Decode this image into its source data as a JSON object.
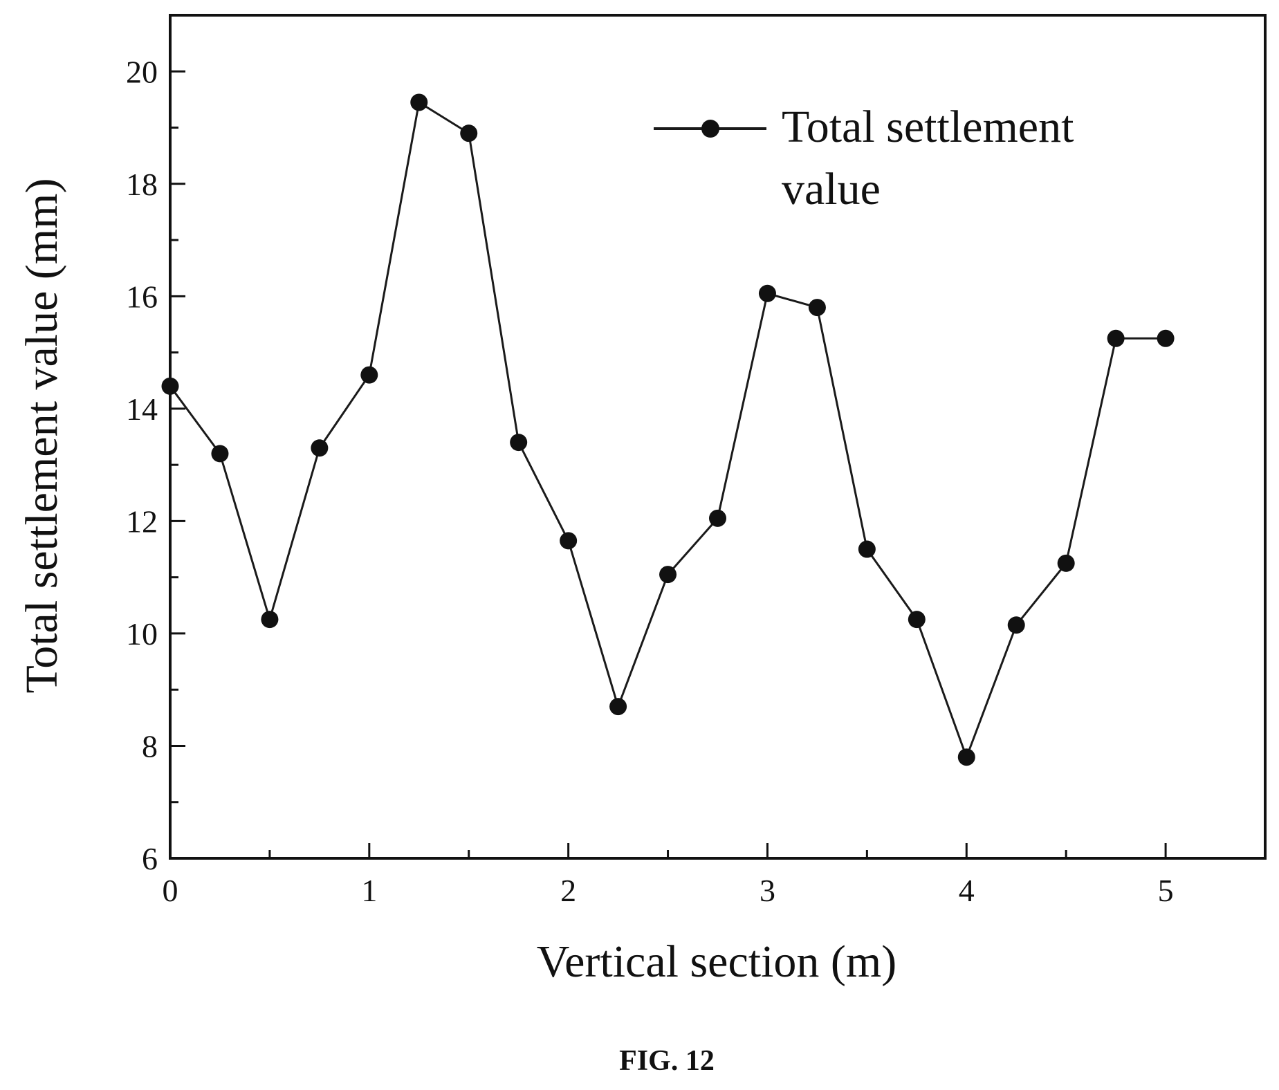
{
  "figure_caption": "FIG. 12",
  "colors": {
    "line": "#1a1a1a",
    "marker": "#111111",
    "axis": "#111111",
    "background": "#ffffff"
  },
  "chart_data": {
    "type": "line",
    "title": "",
    "xlabel": "Vertical section (m)",
    "ylabel": "Total settlement value (mm)",
    "xlim": [
      0,
      5.5
    ],
    "ylim": [
      6,
      21
    ],
    "xticks": [
      0,
      1,
      2,
      3,
      4,
      5
    ],
    "yticks": [
      6,
      8,
      10,
      12,
      14,
      16,
      18,
      20
    ],
    "grid": false,
    "legend": {
      "position": "top-right",
      "lines": [
        "Total settlement",
        "value"
      ]
    },
    "series": [
      {
        "name": "Total settlement value",
        "marker": "filled-circle",
        "x": [
          0,
          0.25,
          0.5,
          0.75,
          1,
          1.25,
          1.5,
          1.75,
          2,
          2.25,
          2.5,
          2.75,
          3,
          3.25,
          3.5,
          3.75,
          4,
          4.25,
          4.5,
          4.75,
          5
        ],
        "y": [
          14.4,
          13.2,
          10.25,
          13.3,
          14.6,
          19.45,
          18.9,
          13.4,
          11.65,
          8.7,
          11.05,
          12.05,
          16.05,
          15.8,
          11.5,
          10.25,
          7.8,
          10.15,
          11.25,
          15.25,
          15.25
        ]
      }
    ]
  }
}
